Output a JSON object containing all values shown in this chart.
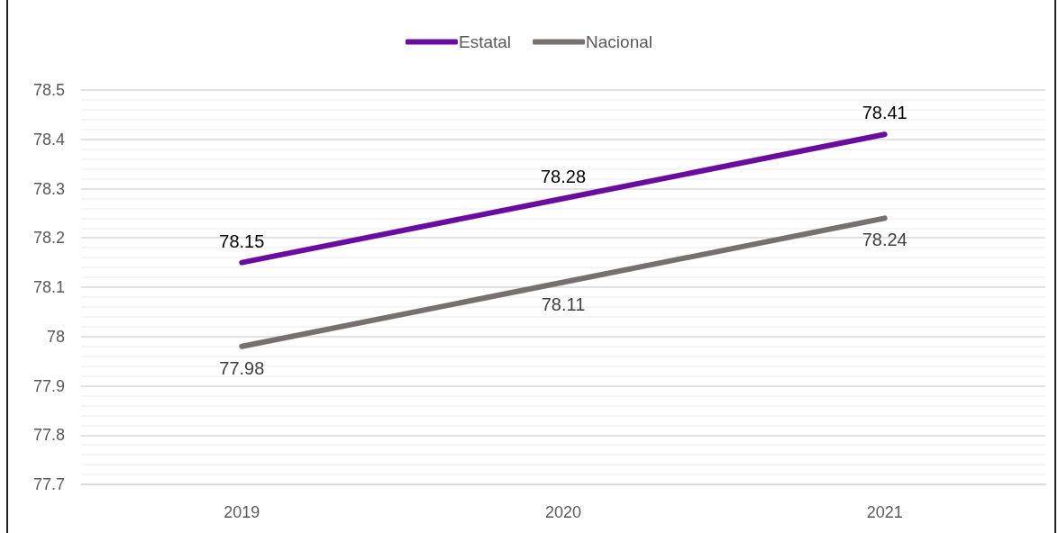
{
  "chart_data": {
    "type": "line",
    "categories": [
      "2019",
      "2020",
      "2021"
    ],
    "series": [
      {
        "name": "Estatal",
        "color": "#6a0ca0",
        "values": [
          78.15,
          78.28,
          78.41
        ]
      },
      {
        "name": "Nacional",
        "color": "#767171",
        "values": [
          77.98,
          78.11,
          78.24
        ]
      }
    ],
    "ylim": [
      77.7,
      78.5
    ],
    "yticks": [
      77.7,
      {
        "value": 77.72,
        "label": null
      },
      {
        "value": 77.74,
        "label": null
      },
      {
        "value": 77.76,
        "label": null
      },
      {
        "value": 77.78,
        "label": null
      },
      77.8,
      {
        "value": 77.82,
        "label": null
      },
      {
        "value": 77.84,
        "label": null
      },
      {
        "value": 77.86,
        "label": null
      },
      {
        "value": 77.88,
        "label": null
      },
      77.9,
      {
        "value": 77.92,
        "label": null
      },
      {
        "value": 77.94,
        "label": null
      },
      {
        "value": 77.96,
        "label": null
      },
      {
        "value": 77.98,
        "label": null
      },
      78,
      {
        "value": 78.02,
        "label": null
      },
      {
        "value": 78.04,
        "label": null
      },
      {
        "value": 78.06,
        "label": null
      },
      {
        "value": 78.08,
        "label": null
      },
      78.1,
      {
        "value": 78.12,
        "label": null
      },
      {
        "value": 78.14,
        "label": null
      },
      {
        "value": 78.16,
        "label": null
      },
      {
        "value": 78.18,
        "label": null
      },
      78.2,
      {
        "value": 78.22,
        "label": null
      },
      {
        "value": 78.24,
        "label": null
      },
      {
        "value": 78.26,
        "label": null
      },
      {
        "value": 78.28,
        "label": null
      },
      78.3,
      {
        "value": 78.32,
        "label": null
      },
      {
        "value": 78.34,
        "label": null
      },
      {
        "value": 78.36,
        "label": null
      },
      {
        "value": 78.38,
        "label": null
      },
      78.4,
      {
        "value": 78.42,
        "label": null
      },
      {
        "value": 78.44,
        "label": null
      },
      {
        "value": 78.46,
        "label": null
      },
      {
        "value": 78.48,
        "label": null
      },
      78.5
    ],
    "grid": "y",
    "legend": "top",
    "marker": "none",
    "line_style": "solid",
    "data_labels": true
  }
}
